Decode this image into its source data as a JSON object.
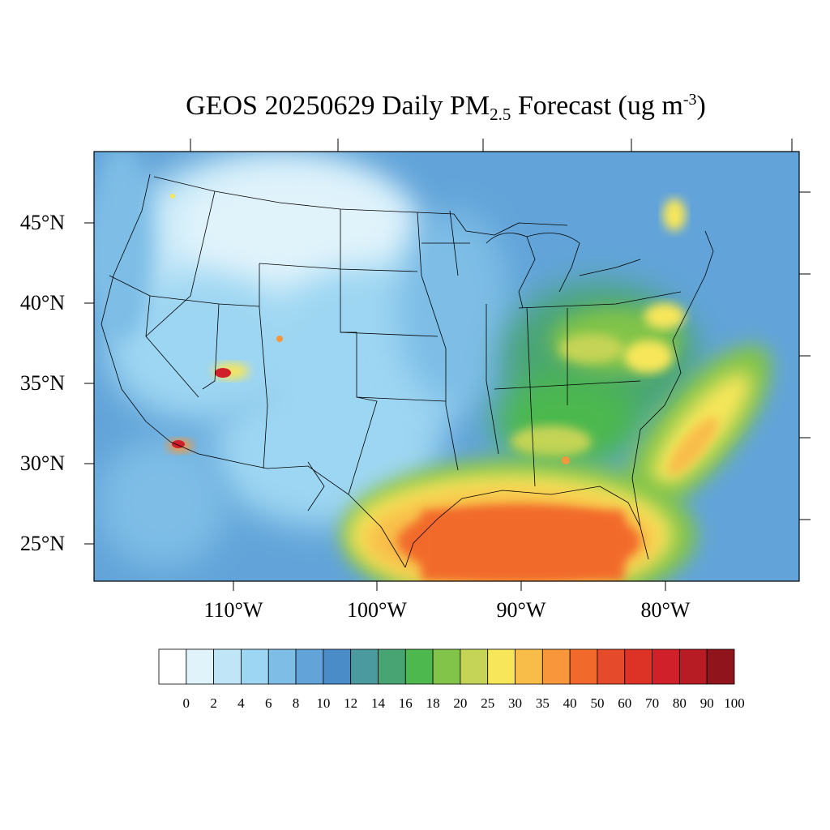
{
  "title": {
    "prefix": "GEOS 20250629 Daily PM",
    "subscript": "2.5",
    "middle": " Forecast (ug m",
    "superscript": "-3",
    "suffix": ")"
  },
  "map": {
    "projection": "lambert-conformal",
    "region": "Contiguous United States",
    "lat_range": [
      22.5,
      49.5
    ],
    "lon_range": [
      -120,
      -70
    ],
    "lat_labels": [
      "45°N",
      "40°N",
      "35°N",
      "30°N",
      "25°N"
    ],
    "lon_labels": [
      "110°W",
      "100°W",
      "90°W",
      "80°W"
    ],
    "background_color": "#5aa0d6",
    "features": [
      {
        "type": "high-pm-band",
        "area": "Gulf of Mexico and Gulf Coast",
        "level_ugm3": 40
      },
      {
        "type": "elevated-band",
        "area": "Atlantic offshore plume",
        "level_ugm3": 30
      },
      {
        "type": "elevated-band",
        "area": "Ohio Valley to Mid-Atlantic",
        "level_ugm3": 25
      },
      {
        "type": "hotspot",
        "area": "Northern Arizona",
        "level_ugm3": 80
      },
      {
        "type": "hotspot",
        "area": "Southern Arizona / Baja border",
        "level_ugm3": 80
      },
      {
        "type": "hotspot",
        "area": "Quebec",
        "level_ugm3": 25
      }
    ]
  },
  "colorbar": {
    "labels": [
      "0",
      "2",
      "4",
      "6",
      "8",
      "10",
      "12",
      "14",
      "16",
      "18",
      "20",
      "25",
      "30",
      "35",
      "40",
      "50",
      "60",
      "70",
      "80",
      "90",
      "100"
    ],
    "colors": [
      "#ffffff",
      "#e0f3fb",
      "#bfe5f7",
      "#9dd6f2",
      "#7dbde6",
      "#62a4d9",
      "#4a8cc7",
      "#4a9aa0",
      "#48a573",
      "#4cb84e",
      "#82c44a",
      "#c5d457",
      "#f7e65a",
      "#f8bd48",
      "#f7963b",
      "#f26a2b",
      "#e54b2a",
      "#dc3326",
      "#d02029",
      "#b71c24",
      "#8f141b"
    ]
  }
}
